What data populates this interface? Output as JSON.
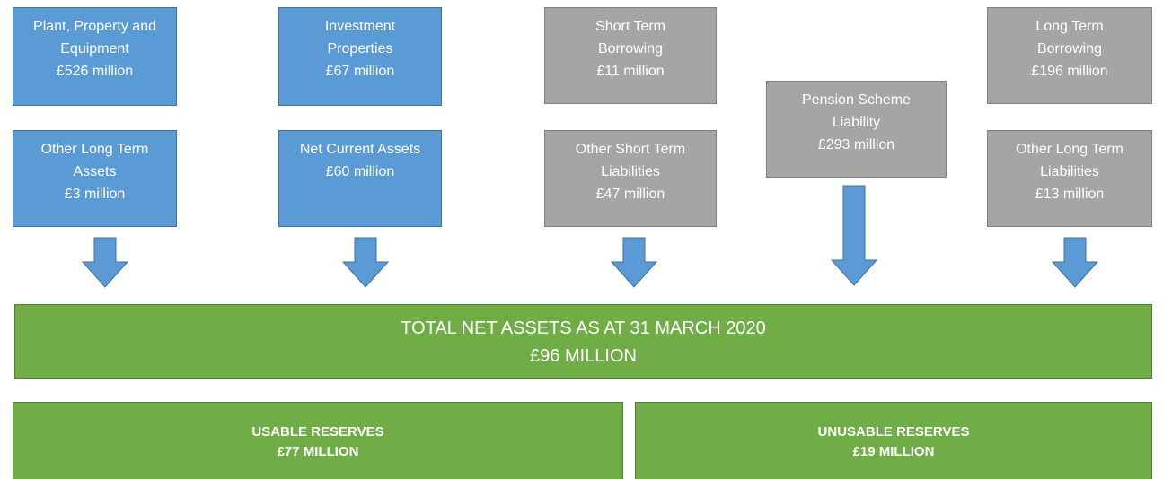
{
  "boxes": [
    {
      "lines": [
        "Plant, Property and",
        "Equipment",
        "£526 million"
      ]
    },
    {
      "lines": [
        "Investment",
        "Properties",
        "£67 million"
      ]
    },
    {
      "lines": [
        "Short Term",
        "Borrowing",
        "£11 million"
      ]
    },
    {
      "lines": [
        "Long Term",
        "Borrowing",
        "£196 million"
      ]
    },
    {
      "lines": [
        "Other Long Term",
        "Assets",
        "£3 million"
      ]
    },
    {
      "lines": [
        "Net Current Assets",
        "£60 million"
      ]
    },
    {
      "lines": [
        "Other Short Term",
        "Liabilities",
        "£47 million"
      ]
    },
    {
      "lines": [
        "Pension Scheme",
        "Liability",
        "£293 million"
      ]
    },
    {
      "lines": [
        "Other Long Term",
        "Liabilities",
        "£13 million"
      ]
    }
  ],
  "total": {
    "lines": [
      "TOTAL NET ASSETS AS AT 31 MARCH 2020",
      "£96 MILLION"
    ]
  },
  "reserves": [
    {
      "lines": [
        "USABLE RESERVES",
        "£77 MILLION"
      ]
    },
    {
      "lines": [
        "UNUSABLE RESERVES",
        "£19 MILLION"
      ]
    }
  ]
}
